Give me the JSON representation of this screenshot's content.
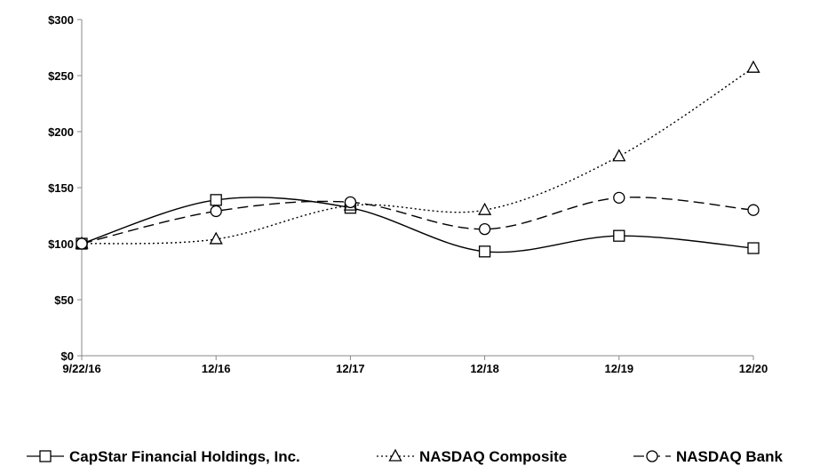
{
  "chart_data": {
    "type": "line",
    "title": "",
    "xlabel": "",
    "ylabel": "",
    "categories": [
      "9/22/16",
      "12/16",
      "12/17",
      "12/18",
      "12/19",
      "12/20"
    ],
    "y_tick_labels": [
      "$0",
      "$50",
      "$100",
      "$150",
      "$200",
      "$250",
      "$300"
    ],
    "ylim": [
      0,
      300
    ],
    "grid": false,
    "legend_position": "bottom",
    "series": [
      {
        "name": "CapStar Financial Holdings, Inc.",
        "values": [
          100,
          139,
          132,
          93,
          107,
          96
        ],
        "marker": "square",
        "dash": "solid",
        "color": "#000000"
      },
      {
        "name": "NASDAQ Composite",
        "values": [
          100,
          104,
          134,
          130,
          178,
          257
        ],
        "marker": "triangle",
        "dash": "dotted",
        "color": "#000000"
      },
      {
        "name": "NASDAQ Bank",
        "values": [
          100,
          129,
          137,
          113,
          141,
          130
        ],
        "marker": "circle",
        "dash": "dashed",
        "color": "#000000"
      }
    ]
  }
}
